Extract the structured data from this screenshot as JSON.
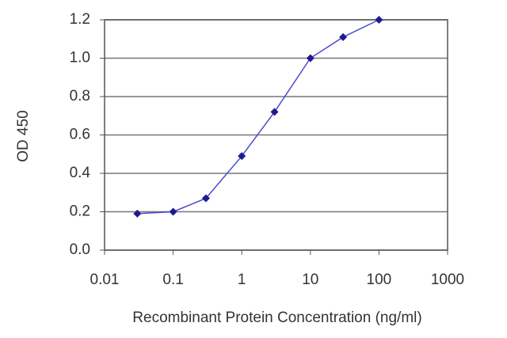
{
  "chart_data": {
    "type": "line",
    "xlabel": "Recombinant Protein Concentration (ng/ml)",
    "ylabel": "OD 450",
    "x": [
      0.03,
      0.1,
      0.3,
      1,
      3,
      10,
      30,
      100
    ],
    "series": [
      {
        "color": "#1c1c90",
        "values": [
          0.19,
          0.2,
          0.27,
          0.49,
          0.72,
          1.0,
          1.11,
          1.2
        ]
      }
    ],
    "xlog": true,
    "xlim": [
      0.01,
      1000
    ],
    "xticks": [
      0.01,
      0.1,
      1,
      10,
      100,
      1000
    ],
    "ylim": [
      0,
      1.2
    ],
    "yticks": [
      {
        "value": 0,
        "label": "0.0"
      },
      0.2,
      0.4,
      0.6,
      0.8,
      {
        "value": 1,
        "label": "1.0"
      },
      1.2
    ],
    "grid": true
  }
}
